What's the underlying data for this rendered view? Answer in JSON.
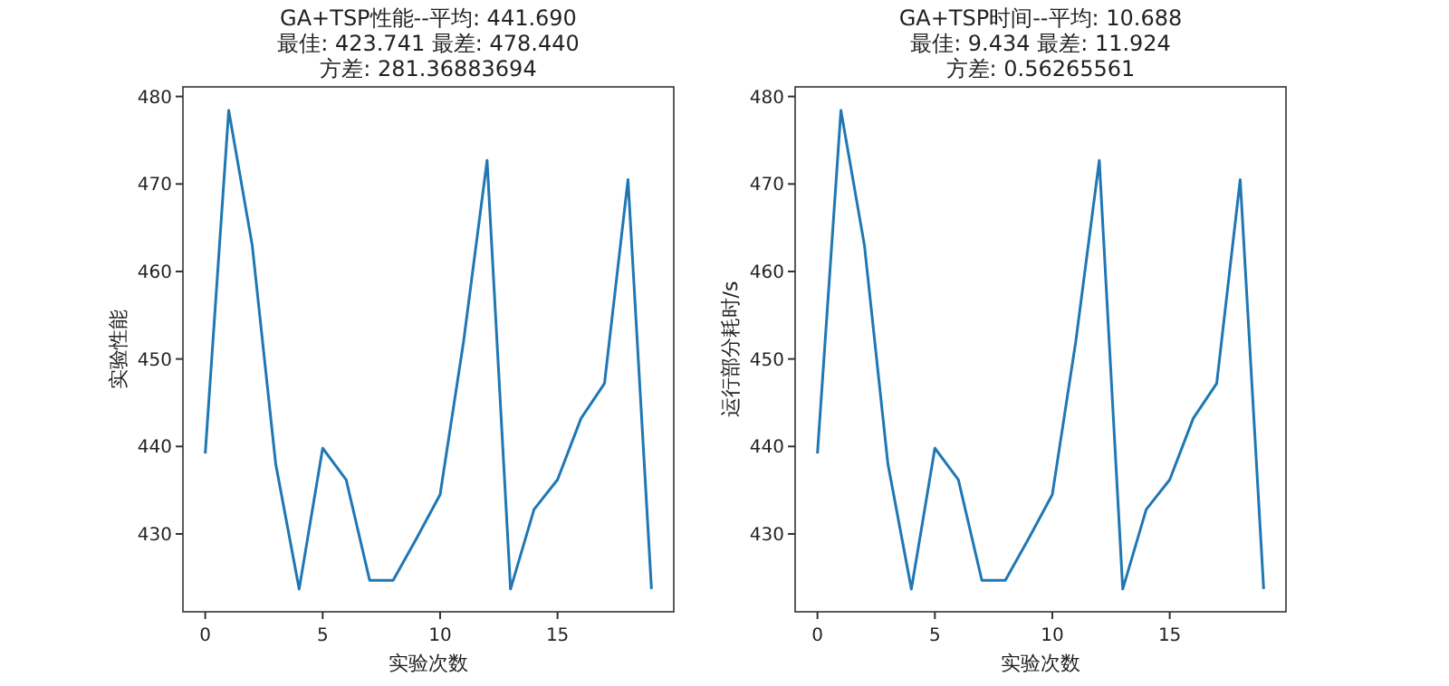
{
  "chart_data": [
    {
      "type": "line",
      "title": "GA+TSP性能--平均: 441.690\n最佳: 423.741 最差: 478.440\n方差: 281.36883694",
      "xlabel": "实验次数",
      "ylabel": "实验性能",
      "x": [
        0,
        1,
        2,
        3,
        4,
        5,
        6,
        7,
        8,
        9,
        10,
        11,
        12,
        13,
        14,
        15,
        16,
        17,
        18,
        19
      ],
      "series": [
        {
          "color": "#1f77b4",
          "values": [
            439.2,
            478.4,
            463,
            438,
            423.7,
            439.8,
            436.2,
            424.7,
            424.7,
            429.5,
            434.5,
            452,
            472.7,
            423.7,
            432.8,
            436.2,
            443.2,
            447.2,
            470.5,
            423.7
          ]
        }
      ],
      "xlim": [
        -0.95,
        19.95
      ],
      "ylim": [
        421.1,
        481.1
      ],
      "xticks": [
        0,
        5,
        10,
        15
      ],
      "yticks": [
        430,
        440,
        450,
        460,
        470,
        480
      ]
    },
    {
      "type": "line",
      "title": "GA+TSP时间--平均: 10.688\n最佳: 9.434 最差: 11.924\n方差: 0.56265561",
      "xlabel": "实验次数",
      "ylabel": "运行部分耗时/s",
      "x": [
        0,
        1,
        2,
        3,
        4,
        5,
        6,
        7,
        8,
        9,
        10,
        11,
        12,
        13,
        14,
        15,
        16,
        17,
        18,
        19
      ],
      "series": [
        {
          "color": "#1f77b4",
          "values": [
            439.2,
            478.4,
            463,
            438,
            423.7,
            439.8,
            436.2,
            424.7,
            424.7,
            429.5,
            434.5,
            452,
            472.7,
            423.7,
            432.8,
            436.2,
            443.2,
            447.2,
            470.5,
            423.7
          ]
        }
      ],
      "xlim": [
        -0.95,
        19.95
      ],
      "ylim": [
        421.1,
        481.1
      ],
      "xticks": [
        0,
        5,
        10,
        15
      ],
      "yticks": [
        430,
        440,
        450,
        460,
        470,
        480
      ]
    }
  ]
}
